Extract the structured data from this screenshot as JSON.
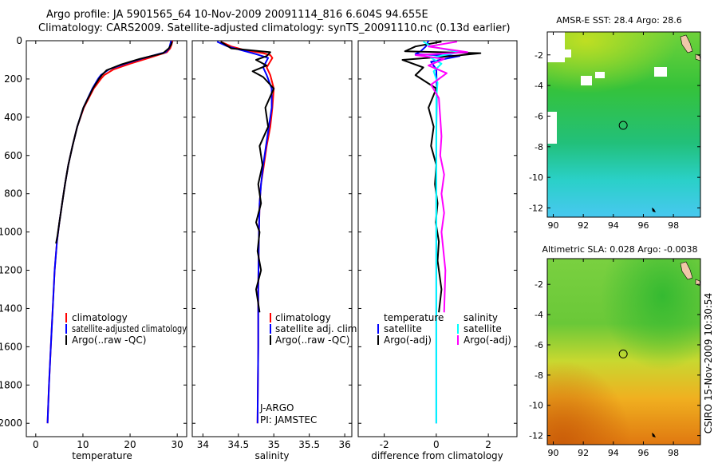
{
  "title": {
    "line1": "Argo profile: JA 5901565_64 10-Nov-2009 20091114_816 6.604S 94.655E",
    "line2": "Climatology: CARS2009. Satellite-adjusted climatology: synTS_20091110.nc (0.13d earlier)"
  },
  "credit": "CSIRO 15-Nov-2009 10:30:54",
  "colors": {
    "clim": "#ff0000",
    "sat": "#0000ff",
    "argo": "#000000",
    "sal_sat": "#00ffff",
    "sal_argo": "#ff00ff"
  },
  "chart_data": [
    {
      "type": "line",
      "id": "temperature",
      "xlabel": "temperature",
      "ylabel": "",
      "xlim": [
        -2,
        32
      ],
      "ylim": [
        2070,
        0
      ],
      "xticks": [
        0,
        10,
        20,
        30
      ],
      "yticks": [
        0,
        200,
        400,
        600,
        800,
        1000,
        1200,
        1400,
        1600,
        1800,
        2000
      ],
      "legend": [
        "climatology",
        "satellite-adjusted climatology",
        "Argo(..raw -QC)"
      ],
      "series": [
        {
          "name": "climatology",
          "color_key": "clim",
          "x": [
            29.0,
            28.8,
            28.5,
            27.8,
            24,
            20,
            16.5,
            14.5,
            13.8,
            12.3,
            10.2,
            8.8,
            7.8,
            6.9,
            6.2,
            5.6,
            5.0,
            4.5,
            4.0,
            3.6,
            3.2,
            2.8,
            2.5
          ],
          "y": [
            0,
            20,
            40,
            60,
            90,
            120,
            150,
            180,
            200,
            250,
            350,
            450,
            550,
            650,
            750,
            850,
            950,
            1050,
            1200,
            1400,
            1600,
            1800,
            2000
          ]
        },
        {
          "name": "satellite-adjusted climatology",
          "color_key": "sat",
          "x": [
            28.7,
            28.5,
            28.3,
            27.5,
            23,
            19,
            15.5,
            13.8,
            13.2,
            12.0,
            10.1,
            8.8,
            7.8,
            6.9,
            6.2,
            5.6,
            5.0,
            4.5,
            4.0,
            3.6,
            3.2,
            2.8,
            2.5
          ],
          "y": [
            0,
            20,
            40,
            60,
            90,
            120,
            150,
            180,
            200,
            250,
            350,
            450,
            550,
            650,
            750,
            850,
            950,
            1050,
            1200,
            1400,
            1600,
            1800,
            2000
          ]
        },
        {
          "name": "Argo(..raw -QC)",
          "color_key": "argo",
          "x": [
            28.9,
            28.7,
            28.2,
            27,
            22,
            18,
            15,
            14,
            13.4,
            12.1,
            10.1,
            8.8,
            7.8,
            6.9,
            6.2,
            5.6,
            5.0,
            4.6,
            4.3
          ],
          "y": [
            5,
            20,
            40,
            65,
            95,
            125,
            155,
            180,
            200,
            250,
            350,
            450,
            550,
            650,
            750,
            850,
            950,
            1020,
            1060
          ]
        }
      ]
    },
    {
      "type": "line",
      "id": "salinity",
      "xlabel": "salinity",
      "ylabel": "",
      "xlim": [
        33.85,
        36.1
      ],
      "ylim": [
        2070,
        0
      ],
      "xticks": [
        34,
        34.5,
        35,
        35.5,
        36
      ],
      "yticks": [
        0,
        200,
        400,
        600,
        800,
        1000,
        1200,
        1400,
        1600,
        1800,
        2000
      ],
      "legend": [
        "climatology",
        "satellite adj. clim.",
        "Argo(..raw -QC)"
      ],
      "annotations": [
        "J-ARGO",
        "PI: JAMSTEC"
      ],
      "series": [
        {
          "name": "climatology",
          "color_key": "clim",
          "x": [
            34.25,
            34.4,
            34.6,
            34.85,
            34.95,
            34.98,
            34.9,
            34.95,
            35.0,
            34.98,
            34.95,
            34.9,
            34.86,
            34.82,
            34.8,
            34.79,
            34.78,
            34.78,
            34.77
          ],
          "y": [
            5,
            30,
            50,
            65,
            75,
            90,
            140,
            180,
            250,
            350,
            450,
            550,
            650,
            750,
            850,
            1000,
            1300,
            1600,
            2000
          ]
        },
        {
          "name": "satellite adj. clim.",
          "color_key": "sat",
          "x": [
            34.2,
            34.35,
            34.55,
            34.75,
            34.92,
            34.85,
            34.9,
            34.97,
            34.97,
            34.93,
            34.89,
            34.85,
            34.82,
            34.8,
            34.79,
            34.78,
            34.78,
            34.77
          ],
          "y": [
            5,
            30,
            50,
            70,
            90,
            140,
            180,
            250,
            350,
            450,
            550,
            650,
            750,
            850,
            1000,
            1300,
            1600,
            2000
          ]
        },
        {
          "name": "Argo(..raw -QC)",
          "color_key": "argo",
          "x": [
            34.25,
            34.4,
            34.95,
            34.9,
            34.75,
            34.9,
            34.7,
            34.85,
            35.0,
            34.88,
            34.92,
            34.8,
            34.84,
            34.78,
            34.82,
            34.75,
            34.8,
            34.77,
            34.82,
            34.75,
            34.8
          ],
          "y": [
            5,
            40,
            60,
            80,
            100,
            130,
            160,
            190,
            250,
            350,
            450,
            550,
            650,
            750,
            850,
            950,
            1000,
            1100,
            1200,
            1300,
            1420
          ]
        }
      ]
    },
    {
      "type": "line",
      "id": "difference",
      "xlabel": "difference from climatology",
      "ylabel": "",
      "xlim": [
        -3,
        3.1
      ],
      "ylim": [
        2070,
        0
      ],
      "xticks": [
        -2,
        0,
        2
      ],
      "yticks": [
        0,
        200,
        400,
        600,
        800,
        1000,
        1200,
        1400,
        1600,
        1800,
        2000
      ],
      "legend_left": [
        "temperature",
        "satellite",
        "Argo(-adj)"
      ],
      "legend_right": [
        "salinity",
        "satellite",
        "Argo(-adj)"
      ],
      "series": [
        {
          "name": "temperature satellite",
          "color_key": "sat",
          "x": [
            -0.3,
            -0.4,
            -0.6,
            -0.8,
            0.9,
            0.5,
            -0.2,
            0,
            0.02,
            0,
            0,
            0,
            0,
            0,
            0
          ],
          "y": [
            0,
            30,
            55,
            70,
            80,
            90,
            110,
            150,
            250,
            500,
            800,
            1100,
            1400,
            1700,
            2000
          ]
        },
        {
          "name": "temperature Argo(-adj)",
          "color_key": "argo",
          "x": [
            0.2,
            -0.8,
            -1.2,
            1.7,
            0.6,
            -1.3,
            -0.5,
            -0.8,
            0,
            -0.3,
            -0.1,
            -0.2,
            0,
            -0.05,
            0.05,
            -0.02,
            0.1,
            0.05,
            0.2,
            0.1
          ],
          "y": [
            5,
            30,
            55,
            65,
            80,
            100,
            140,
            180,
            250,
            350,
            450,
            550,
            650,
            750,
            850,
            950,
            1050,
            1150,
            1300,
            1420
          ]
        },
        {
          "name": "salinity satellite",
          "color_key": "sal_sat",
          "x": [
            -0.5,
            -0.2,
            0.9,
            0.3,
            -0.2,
            0.2,
            -0.1,
            0.05,
            0,
            0,
            0,
            0,
            0,
            0
          ],
          "y": [
            5,
            30,
            60,
            75,
            90,
            120,
            160,
            220,
            300,
            600,
            900,
            1200,
            1500,
            2000
          ]
        },
        {
          "name": "salinity Argo(-adj)",
          "color_key": "sal_argo",
          "x": [
            0.8,
            -0.3,
            1.2,
            -0.8,
            0.3,
            -0.3,
            0.4,
            -0.2,
            0.1,
            0.15,
            0.2,
            0.15,
            0.3,
            0.2,
            0.3,
            0.2,
            0.35,
            0.3
          ],
          "y": [
            5,
            30,
            60,
            75,
            95,
            130,
            170,
            230,
            300,
            400,
            500,
            600,
            700,
            800,
            900,
            1000,
            1200,
            1420
          ]
        }
      ]
    },
    {
      "type": "heatmap",
      "id": "sst",
      "title": "AMSR-E SST: 28.4 Argo: 28.6",
      "xlim": [
        89.6,
        99.8
      ],
      "ylim": [
        -12.6,
        -0.5
      ],
      "xticks": [
        90,
        92,
        94,
        96,
        98
      ],
      "yticks": [
        -2,
        -4,
        -6,
        -8,
        -10,
        -12
      ],
      "marker": {
        "lon": 94.655,
        "lat": -6.604
      }
    },
    {
      "type": "heatmap",
      "id": "sla",
      "title": "Altimetric SLA: 0.028 Argo: -0.0038",
      "xlim": [
        89.6,
        99.8
      ],
      "ylim": [
        -12.6,
        -0.3
      ],
      "xticks": [
        90,
        92,
        94,
        96,
        98
      ],
      "yticks": [
        -2,
        -4,
        -6,
        -8,
        -10,
        -12
      ],
      "marker": {
        "lon": 94.655,
        "lat": -6.604
      }
    }
  ]
}
